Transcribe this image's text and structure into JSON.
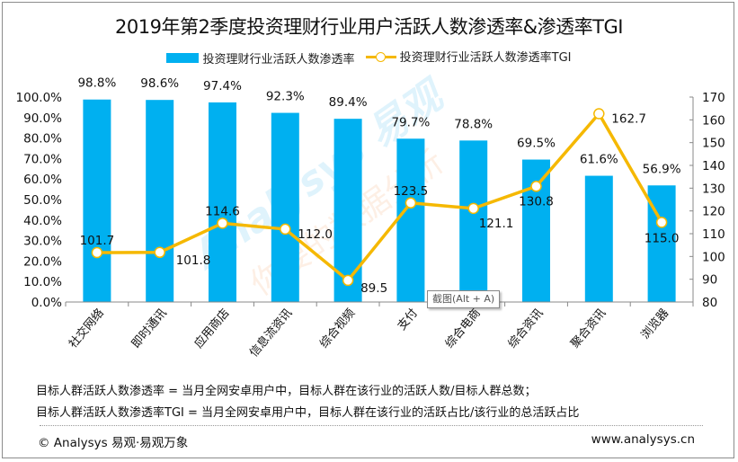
{
  "watermark": {
    "text": "Analysys 易观",
    "sub": "你要的数据分析"
  },
  "tooltip": {
    "text": "截图(Alt + A)"
  },
  "notes": [
    "目标人群活跃人数渗透率 = 当月全网安卓用户中，目标人群在该行业的活跃人数/目标人群总数；",
    "目标人群活跃人数渗透率TGI = 当月全网安卓用户中，目标人群在该行业的活跃占比/该行业的总活跃占比"
  ],
  "footer": {
    "left": "© Analysys 易观·易观万象",
    "right": "www.analysys.cn"
  },
  "colors": {
    "bar": "#00b0f0",
    "line": "#f5b800"
  },
  "chart_data": {
    "type": "bar+line",
    "title": "2019年第2季度投资理财行业用户活跃人数渗透率&渗透率TGI",
    "categories": [
      "社交网络",
      "即时通讯",
      "应用商店",
      "信息流资讯",
      "综合视频",
      "支付",
      "综合电商",
      "综合资讯",
      "聚合资讯",
      "浏览器"
    ],
    "series": [
      {
        "name": "投资理财行业活跃人数渗透率",
        "type": "bar",
        "axis": "left",
        "values": [
          98.8,
          98.6,
          97.4,
          92.3,
          89.4,
          79.7,
          78.8,
          69.5,
          61.6,
          56.9
        ],
        "labels": [
          "98.8%",
          "98.6%",
          "97.4%",
          "92.3%",
          "89.4%",
          "79.7%",
          "78.8%",
          "69.5%",
          "61.6%",
          "56.9%"
        ]
      },
      {
        "name": "投资理财行业活跃人数渗透率TGI",
        "type": "line",
        "axis": "right",
        "values": [
          101.7,
          101.8,
          114.6,
          112.0,
          89.5,
          123.5,
          121.1,
          130.8,
          162.7,
          115.0
        ],
        "labels": [
          "101.7",
          "101.8",
          "114.6",
          "112.0",
          "89.5",
          "123.5",
          "121.1",
          "130.8",
          "162.7",
          "115.0"
        ]
      }
    ],
    "y_left": {
      "range": [
        0,
        100
      ],
      "step": 10,
      "ticks": [
        "0.0%",
        "10.0%",
        "20.0%",
        "30.0%",
        "40.0%",
        "50.0%",
        "60.0%",
        "70.0%",
        "80.0%",
        "90.0%",
        "100.0%"
      ]
    },
    "y_right": {
      "range": [
        80,
        170
      ],
      "step": 10,
      "ticks": [
        "80",
        "90",
        "100",
        "110",
        "120",
        "130",
        "140",
        "150",
        "160",
        "170"
      ]
    },
    "legend_position": "top",
    "grid": false
  }
}
